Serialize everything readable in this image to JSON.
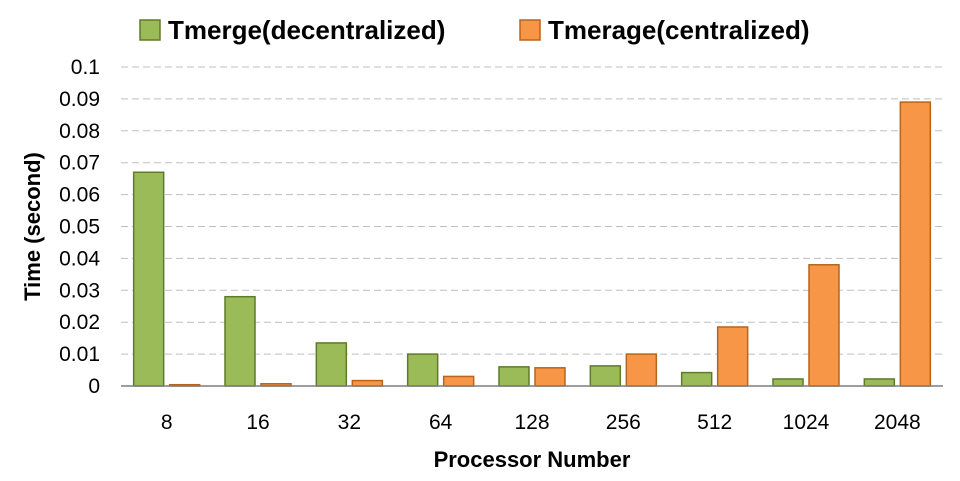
{
  "chart_data": {
    "type": "bar",
    "categories": [
      "8",
      "16",
      "32",
      "64",
      "128",
      "256",
      "512",
      "1024",
      "2048"
    ],
    "series": [
      {
        "name": "Tmerge(decentralized)",
        "values": [
          0.067,
          0.028,
          0.0135,
          0.01,
          0.006,
          0.0063,
          0.0042,
          0.0022,
          0.0022
        ]
      },
      {
        "name": "Tmerage(centralized)",
        "values": [
          0.0004,
          0.0007,
          0.0017,
          0.003,
          0.0057,
          0.01,
          0.0185,
          0.038,
          0.089
        ]
      }
    ],
    "colors": {
      "series_fill": [
        "#9bbb59",
        "#f79646"
      ],
      "series_stroke": [
        "#5e7a2a",
        "#b5651d"
      ],
      "grid": "#bfbfbf"
    },
    "xlabel": "Processor Number",
    "ylabel": "Time (second)",
    "ylim": [
      0,
      0.1
    ],
    "yticks": [
      "0",
      "0.01",
      "0.02",
      "0.03",
      "0.04",
      "0.05",
      "0.06",
      "0.07",
      "0.08",
      "0.09",
      "0.1"
    ],
    "grid": true,
    "grid_style": "dashed",
    "legend_position": "top"
  }
}
